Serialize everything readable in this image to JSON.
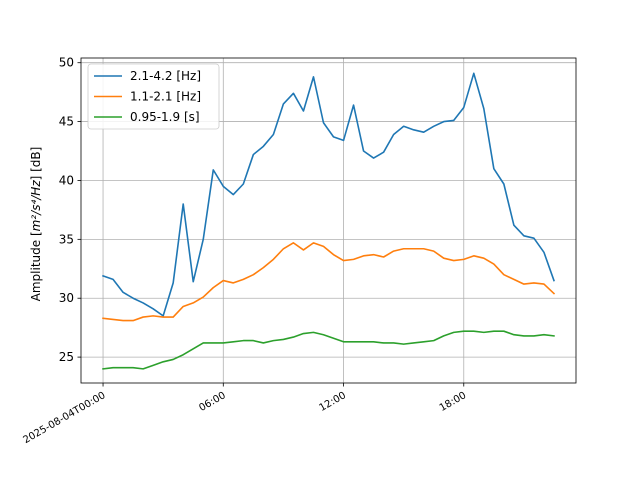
{
  "chart_data": {
    "type": "line",
    "title": "",
    "xlabel": "",
    "ylabel_prefix": "Amplitude [",
    "ylabel_math": "m²/s⁴/Hz",
    "ylabel_suffix": "] [dB]",
    "x": [
      "2025-08-04T00:00",
      "2025-08-04T00:30",
      "2025-08-04T01:00",
      "2025-08-04T01:30",
      "2025-08-04T02:00",
      "2025-08-04T02:30",
      "2025-08-04T03:00",
      "2025-08-04T03:30",
      "2025-08-04T04:00",
      "2025-08-04T04:30",
      "2025-08-04T05:00",
      "2025-08-04T05:30",
      "2025-08-04T06:00",
      "2025-08-04T06:30",
      "2025-08-04T07:00",
      "2025-08-04T07:30",
      "2025-08-04T08:00",
      "2025-08-04T08:30",
      "2025-08-04T09:00",
      "2025-08-04T09:30",
      "2025-08-04T10:00",
      "2025-08-04T10:30",
      "2025-08-04T11:00",
      "2025-08-04T11:30",
      "2025-08-04T12:00",
      "2025-08-04T12:30",
      "2025-08-04T13:00",
      "2025-08-04T13:30",
      "2025-08-04T14:00",
      "2025-08-04T14:30",
      "2025-08-04T15:00",
      "2025-08-04T15:30",
      "2025-08-04T16:00",
      "2025-08-04T16:30",
      "2025-08-04T17:00",
      "2025-08-04T17:30",
      "2025-08-04T18:00",
      "2025-08-04T18:30",
      "2025-08-04T19:00",
      "2025-08-04T19:30",
      "2025-08-04T20:00",
      "2025-08-04T20:30",
      "2025-08-04T21:00",
      "2025-08-04T21:30",
      "2025-08-04T22:00",
      "2025-08-04T22:30"
    ],
    "series": [
      {
        "name": "2.1-4.2 [Hz]",
        "color": "#1f77b4",
        "values": [
          31.9,
          31.6,
          30.5,
          30.0,
          29.6,
          29.1,
          28.5,
          31.3,
          38.0,
          31.4,
          35.0,
          40.9,
          39.5,
          38.8,
          39.7,
          42.2,
          42.9,
          43.9,
          46.5,
          47.4,
          45.9,
          48.8,
          44.9,
          43.7,
          43.4,
          46.4,
          42.5,
          41.9,
          42.4,
          43.9,
          44.6,
          44.3,
          44.1,
          44.6,
          45.0,
          45.1,
          46.2,
          49.1,
          46.1,
          41.0,
          39.7,
          36.2,
          35.3,
          35.1,
          33.9,
          31.5
        ]
      },
      {
        "name": "1.1-2.1 [Hz]",
        "color": "#ff7f0e",
        "values": [
          28.3,
          28.2,
          28.1,
          28.1,
          28.4,
          28.5,
          28.4,
          28.4,
          29.3,
          29.6,
          30.1,
          30.9,
          31.5,
          31.3,
          31.6,
          32.0,
          32.6,
          33.3,
          34.2,
          34.7,
          34.1,
          34.7,
          34.4,
          33.7,
          33.2,
          33.3,
          33.6,
          33.7,
          33.5,
          34.0,
          34.2,
          34.2,
          34.2,
          34.0,
          33.4,
          33.2,
          33.3,
          33.6,
          33.4,
          32.9,
          32.0,
          31.6,
          31.2,
          31.3,
          31.2,
          30.4
        ]
      },
      {
        "name": "0.95-1.9 [s]",
        "color": "#2ca02c",
        "values": [
          24.0,
          24.1,
          24.1,
          24.1,
          24.0,
          24.3,
          24.6,
          24.8,
          25.2,
          25.7,
          26.2,
          26.2,
          26.2,
          26.3,
          26.4,
          26.4,
          26.2,
          26.4,
          26.5,
          26.7,
          27.0,
          27.1,
          26.9,
          26.6,
          26.3,
          26.3,
          26.3,
          26.3,
          26.2,
          26.2,
          26.1,
          26.2,
          26.3,
          26.4,
          26.8,
          27.1,
          27.2,
          27.2,
          27.1,
          27.2,
          27.2,
          26.9,
          26.8,
          26.8,
          26.9,
          26.8
        ]
      }
    ],
    "ylim": [
      22.8,
      50.4
    ],
    "yticks": [
      25,
      30,
      35,
      40,
      45,
      50
    ],
    "xlim_hours": [
      -1.1,
      23.6
    ],
    "xticks": [
      {
        "label": "2025-08-04T00:00",
        "hour": 0
      },
      {
        "label": "06:00",
        "hour": 6
      },
      {
        "label": "12:00",
        "hour": 12
      },
      {
        "label": "18:00",
        "hour": 18
      }
    ],
    "grid": true,
    "legend_position": "top-left"
  }
}
